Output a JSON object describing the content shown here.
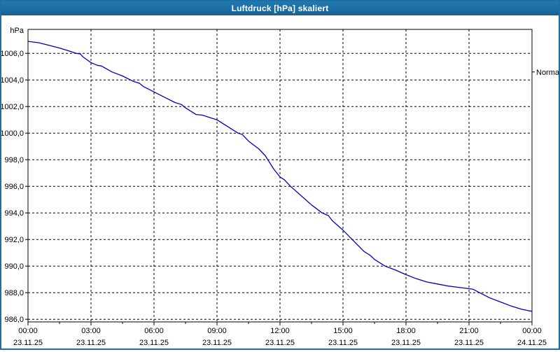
{
  "window": {
    "title": "Luftdruck [hPa] skaliert"
  },
  "colors": {
    "titlebar": "#1d6fa5",
    "curve": "#0000bb",
    "grid": "#000000",
    "text": "#000000",
    "plot_bg": "#ffffff"
  },
  "chart_data": {
    "type": "line",
    "title": "Luftdruck [hPa] skaliert",
    "ylabel": "hPa",
    "y_unit_label": "hPa",
    "grid": "dashed",
    "legend_position": "none",
    "ylim": [
      985.8,
      1007.8
    ],
    "xlim_hours": [
      0,
      24
    ],
    "y_ticks": [
      {
        "value": 1006,
        "label": "1006,0"
      },
      {
        "value": 1004,
        "label": "1004,0"
      },
      {
        "value": 1002,
        "label": "1002,0"
      },
      {
        "value": 1000,
        "label": "1000,0"
      },
      {
        "value": 998,
        "label": "998,0"
      },
      {
        "value": 996,
        "label": "996,0"
      },
      {
        "value": 994,
        "label": "994,0"
      },
      {
        "value": 992,
        "label": "992,0"
      },
      {
        "value": 990,
        "label": "990,0"
      },
      {
        "value": 988,
        "label": "988,0"
      },
      {
        "value": 986,
        "label": "986,0"
      }
    ],
    "x_ticks": [
      {
        "hour": 0,
        "time": "00:00",
        "date": "23.11.25"
      },
      {
        "hour": 3,
        "time": "03:00",
        "date": "23.11.25"
      },
      {
        "hour": 6,
        "time": "06:00",
        "date": "23.11.25"
      },
      {
        "hour": 9,
        "time": "09:00",
        "date": "23.11.25"
      },
      {
        "hour": 12,
        "time": "12:00",
        "date": "23.11.25"
      },
      {
        "hour": 15,
        "time": "15:00",
        "date": "23.11.25"
      },
      {
        "hour": 18,
        "time": "18:00",
        "date": "23.11.25"
      },
      {
        "hour": 21,
        "time": "21:00",
        "date": "23.11.25"
      },
      {
        "hour": 24,
        "time": "00:00",
        "date": "24.11.25"
      }
    ],
    "x_minor_tick_interval_hours": 1.5,
    "annotations": [
      {
        "label": "Normal",
        "y": 1004.6,
        "side": "right"
      }
    ],
    "series": [
      {
        "name": "Luftdruck",
        "color": "#0000bb",
        "points": [
          [
            0,
            1006.9
          ],
          [
            0.5,
            1006.8
          ],
          [
            1,
            1006.6
          ],
          [
            1.5,
            1006.4
          ],
          [
            2,
            1006.15
          ],
          [
            2.3,
            1006.0
          ],
          [
            2.5,
            1005.95
          ],
          [
            2.6,
            1005.75
          ],
          [
            3,
            1005.3
          ],
          [
            3.3,
            1005.1
          ],
          [
            3.5,
            1005.05
          ],
          [
            4,
            1004.6
          ],
          [
            4.5,
            1004.3
          ],
          [
            5,
            1003.9
          ],
          [
            5.3,
            1003.75
          ],
          [
            5.5,
            1003.5
          ],
          [
            6,
            1003.1
          ],
          [
            6.5,
            1002.7
          ],
          [
            7,
            1002.3
          ],
          [
            7.3,
            1002.15
          ],
          [
            7.5,
            1001.9
          ],
          [
            8,
            1001.4
          ],
          [
            8.3,
            1001.35
          ],
          [
            9,
            1001.0
          ],
          [
            9.3,
            1000.7
          ],
          [
            9.5,
            1000.5
          ],
          [
            10,
            1000.0
          ],
          [
            10.2,
            999.9
          ],
          [
            10.5,
            999.4
          ],
          [
            11,
            998.8
          ],
          [
            11.3,
            998.3
          ],
          [
            11.7,
            997.3
          ],
          [
            12,
            996.7
          ],
          [
            12.2,
            996.5
          ],
          [
            12.5,
            996.0
          ],
          [
            13,
            995.3
          ],
          [
            13.5,
            994.6
          ],
          [
            14,
            994.0
          ],
          [
            14.3,
            993.8
          ],
          [
            14.5,
            993.4
          ],
          [
            15,
            992.7
          ],
          [
            15.5,
            991.9
          ],
          [
            16,
            991.1
          ],
          [
            16.3,
            990.8
          ],
          [
            16.5,
            990.5
          ],
          [
            17,
            990.0
          ],
          [
            17.5,
            989.7
          ],
          [
            18,
            989.35
          ],
          [
            18.5,
            989.05
          ],
          [
            19,
            988.8
          ],
          [
            19.5,
            988.65
          ],
          [
            20,
            988.5
          ],
          [
            20.5,
            988.4
          ],
          [
            21,
            988.3
          ],
          [
            21.2,
            988.25
          ],
          [
            21.5,
            988.0
          ],
          [
            22,
            987.6
          ],
          [
            22.5,
            987.3
          ],
          [
            23,
            987.0
          ],
          [
            23.5,
            986.75
          ],
          [
            23.8,
            986.65
          ],
          [
            24,
            986.6
          ]
        ]
      }
    ]
  }
}
